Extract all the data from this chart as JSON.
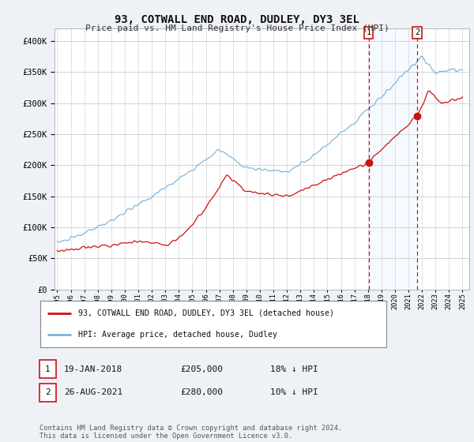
{
  "title": "93, COTWALL END ROAD, DUDLEY, DY3 3EL",
  "subtitle": "Price paid vs. HM Land Registry's House Price Index (HPI)",
  "legend_label_red": "93, COTWALL END ROAD, DUDLEY, DY3 3EL (detached house)",
  "legend_label_blue": "HPI: Average price, detached house, Dudley",
  "annotation1_date": "19-JAN-2018",
  "annotation1_price": "£205,000",
  "annotation1_hpi": "18% ↓ HPI",
  "annotation2_date": "26-AUG-2021",
  "annotation2_price": "£280,000",
  "annotation2_hpi": "10% ↓ HPI",
  "footer": "Contains HM Land Registry data © Crown copyright and database right 2024.\nThis data is licensed under the Open Government Licence v3.0.",
  "ylim": [
    0,
    420000
  ],
  "yticks": [
    0,
    50000,
    100000,
    150000,
    200000,
    250000,
    300000,
    350000,
    400000
  ],
  "bg_color": "#eef2f7",
  "plot_bg_color": "#ffffff",
  "vline1_x": 2018.05,
  "vline2_x": 2021.65,
  "point1_x": 2018.05,
  "point1_y": 205000,
  "point2_x": 2021.65,
  "point2_y": 280000,
  "xmin": 1994.8,
  "xmax": 2025.5
}
